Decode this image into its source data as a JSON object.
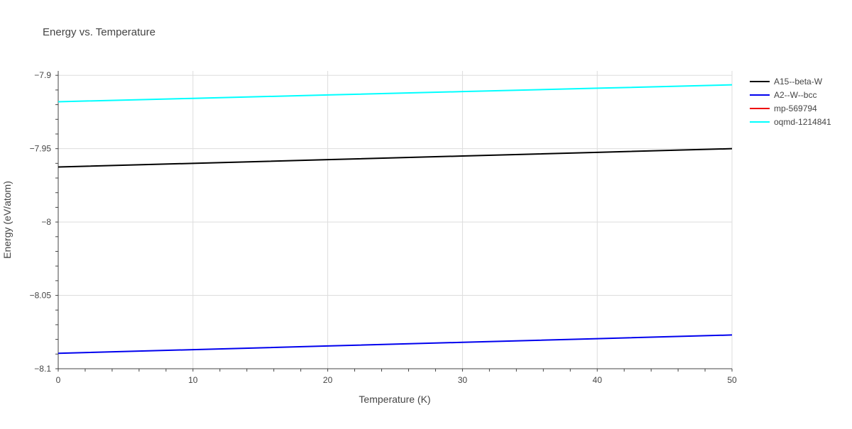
{
  "chart_data": {
    "type": "line",
    "title": "Energy vs. Temperature",
    "xlabel": "Temperature (K)",
    "ylabel": "Energy (eV/atom)",
    "xlim": [
      0,
      50
    ],
    "ylim": [
      -8.1,
      -7.897
    ],
    "x_ticks": [
      0,
      10,
      20,
      30,
      40,
      50
    ],
    "x_tick_labels": [
      "0",
      "10",
      "20",
      "30",
      "40",
      "50"
    ],
    "y_ticks": [
      -8.1,
      -8.05,
      -8.0,
      -7.95,
      -7.9
    ],
    "y_tick_labels": [
      "−8.1",
      "−8.05",
      "−8",
      "−7.95",
      "−7.9"
    ],
    "grid": true,
    "legend_position": "top-right",
    "series": [
      {
        "name": "A15--beta-W",
        "color": "#000000",
        "x": [
          0,
          10,
          20,
          30,
          40,
          50
        ],
        "y": [
          -7.9625,
          -7.96,
          -7.9575,
          -7.955,
          -7.9525,
          -7.95
        ]
      },
      {
        "name": "A2--W--bcc",
        "color": "#0000ee",
        "x": [
          0,
          10,
          20,
          30,
          40,
          50
        ],
        "y": [
          -8.0895,
          -8.087,
          -8.0845,
          -8.082,
          -8.0795,
          -8.077
        ]
      },
      {
        "name": "mp-569794",
        "color": "#ee0000",
        "x": [],
        "y": []
      },
      {
        "name": "oqmd-1214841",
        "color": "#00ffff",
        "x": [
          0,
          10,
          20,
          30,
          40,
          50
        ],
        "y": [
          -7.918,
          -7.9157,
          -7.9134,
          -7.9111,
          -7.9088,
          -7.9065
        ]
      }
    ]
  }
}
